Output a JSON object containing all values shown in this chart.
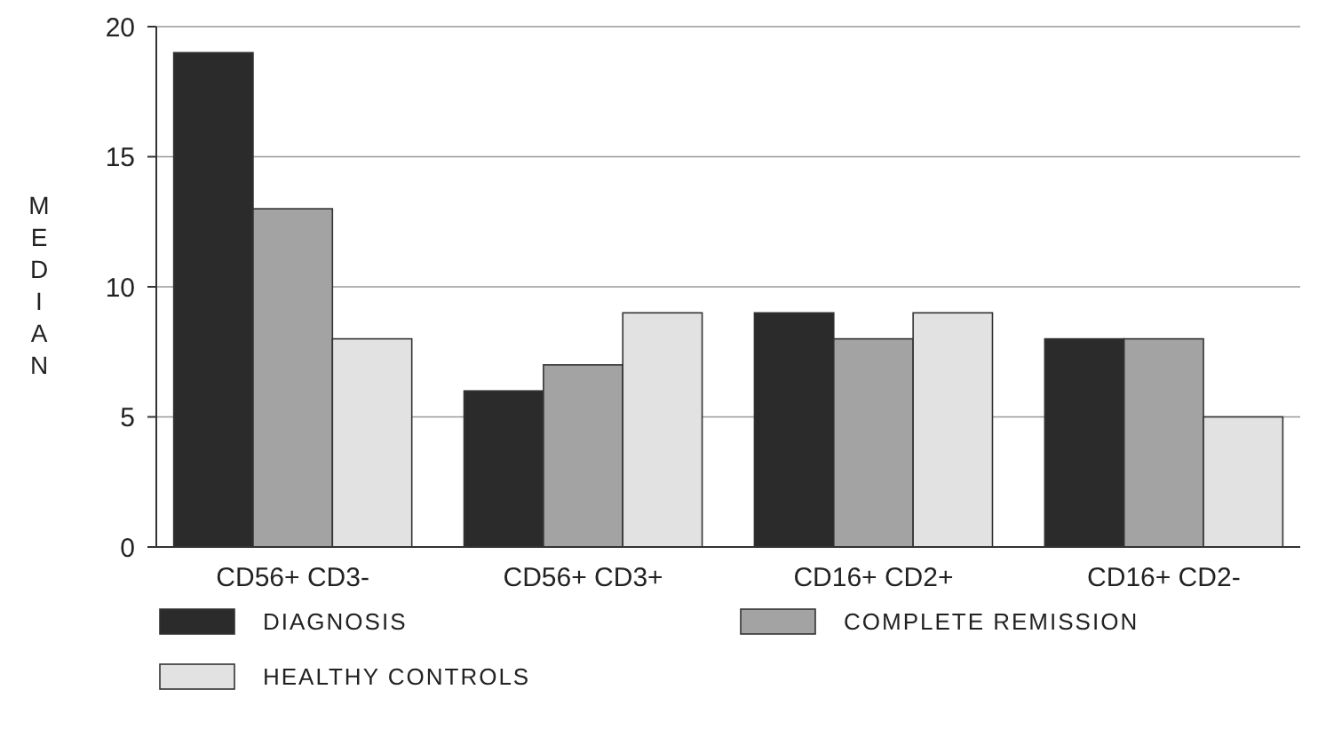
{
  "chart_data": {
    "type": "bar",
    "ylabel": "MEDIAN",
    "categories": [
      "CD56+ CD3-",
      "CD56+ CD3+",
      "CD16+ CD2+",
      "CD16+ CD2-"
    ],
    "series": [
      {
        "name": "DIAGNOSIS",
        "color": "#2b2b2b",
        "values": [
          19,
          6,
          9,
          8
        ]
      },
      {
        "name": "COMPLETE REMISSION",
        "color": "#a3a3a3",
        "values": [
          13,
          7,
          8,
          8
        ]
      },
      {
        "name": "HEALTHY CONTROLS",
        "color": "#e2e2e2",
        "values": [
          8,
          9,
          9,
          5
        ]
      }
    ],
    "ylim": [
      0,
      20
    ],
    "yticks": [
      0,
      5,
      10,
      15,
      20
    ],
    "grid": "y",
    "legend": "bottom"
  }
}
